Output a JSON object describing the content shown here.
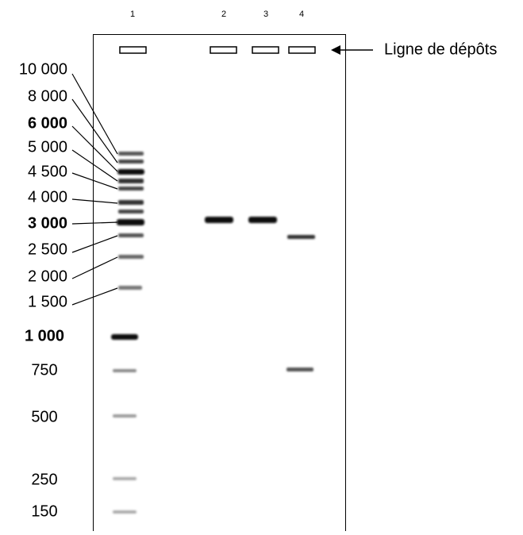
{
  "lane_numbers": [
    "1",
    "2",
    "3",
    "4"
  ],
  "well_line_label": "Ligne de dépôts",
  "ladder_labels": [
    "10 000",
    "8 000",
    "6 000",
    "5 000",
    "4 500",
    "4 000",
    "3 000",
    "2 500",
    "2 000",
    "1 500",
    "1 000",
    "750",
    "500",
    "250",
    "150"
  ]
}
